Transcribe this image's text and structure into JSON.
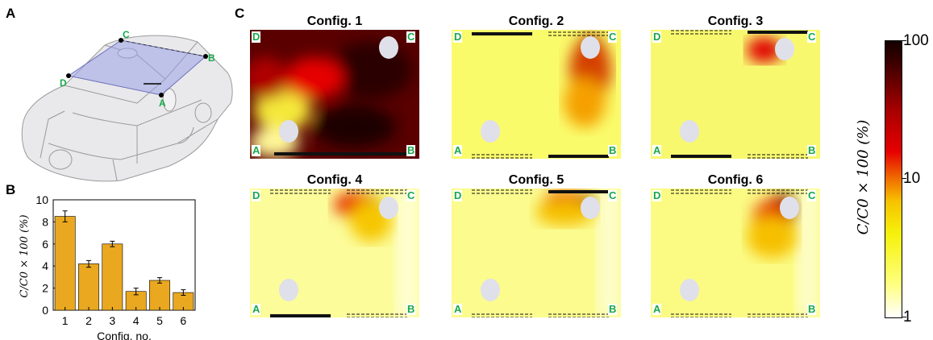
{
  "panel_labels": {
    "a": "A",
    "b": "B",
    "c": "C"
  },
  "car_diagram": {
    "points": [
      "A",
      "B",
      "C",
      "D"
    ]
  },
  "chart_data": [
    {
      "type": "bar",
      "panel": "B",
      "categories": [
        "1",
        "2",
        "3",
        "4",
        "5",
        "6"
      ],
      "values": [
        8.5,
        4.2,
        6.0,
        1.7,
        2.7,
        1.6
      ],
      "errors": [
        0.5,
        0.3,
        0.25,
        0.3,
        0.25,
        0.25
      ],
      "xlabel": "Config. no.",
      "ylabel": "C/C0 × 100 (%)",
      "ylim": [
        0,
        10
      ],
      "yticks": [
        "0",
        "2",
        "4",
        "6",
        "8",
        "10"
      ],
      "bar_color": "#e9a820"
    },
    {
      "type": "heatmap",
      "panel": "C",
      "colorbar": {
        "ticks": [
          "100",
          "10",
          "1"
        ],
        "label": "C/C0 × 100 (%)",
        "scale": "log",
        "range": [
          1,
          100
        ]
      },
      "maps": [
        {
          "title": "Config. 1",
          "corners": [
            "A",
            "B",
            "C",
            "D"
          ]
        },
        {
          "title": "Config. 2",
          "corners": [
            "A",
            "B",
            "C",
            "D"
          ]
        },
        {
          "title": "Config. 3",
          "corners": [
            "A",
            "B",
            "C",
            "D"
          ]
        },
        {
          "title": "Config. 4",
          "corners": [
            "A",
            "B",
            "C",
            "D"
          ]
        },
        {
          "title": "Config. 5",
          "corners": [
            "A",
            "B",
            "C",
            "D"
          ]
        },
        {
          "title": "Config. 6",
          "corners": [
            "A",
            "B",
            "C",
            "D"
          ]
        }
      ]
    }
  ],
  "colors": {
    "corner_label": "#19a84a",
    "bar": "#e9a820",
    "plane": "#9aa0e6"
  }
}
